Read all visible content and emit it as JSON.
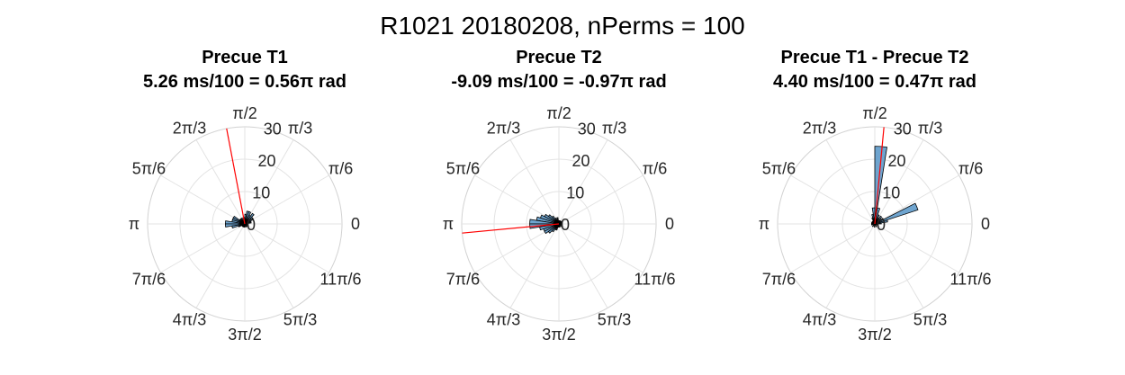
{
  "figure": {
    "title": "R1021 20180208, nPerms = 100"
  },
  "angle_tick_labels": [
    "0",
    "π/6",
    "π/3",
    "π/2",
    "2π/3",
    "5π/6",
    "π",
    "7π/6",
    "4π/3",
    "3π/2",
    "5π/3",
    "11π/6"
  ],
  "chart_data": [
    {
      "type": "polar-histogram",
      "title": "Precue T1",
      "subtitle": "5.26 ms/100 = 0.56π rad",
      "rlim": [
        0,
        30
      ],
      "r_ticks": [
        "0",
        "10",
        "20",
        "30"
      ],
      "grid": true,
      "bar_color": "#6ea4cf",
      "mean_line_color": "#ff0000",
      "mean_angle_pi": 0.56,
      "mean_length": 30,
      "bin_width_pi": 0.05,
      "bins": [
        {
          "angle_pi": 0.025,
          "count": 1
        },
        {
          "angle_pi": 0.075,
          "count": 2
        },
        {
          "angle_pi": 0.125,
          "count": 2
        },
        {
          "angle_pi": 0.175,
          "count": 3
        },
        {
          "angle_pi": 0.225,
          "count": 3
        },
        {
          "angle_pi": 0.275,
          "count": 4
        },
        {
          "angle_pi": 0.325,
          "count": 3
        },
        {
          "angle_pi": 0.375,
          "count": 4
        },
        {
          "angle_pi": 0.425,
          "count": 4
        },
        {
          "angle_pi": 0.475,
          "count": 3
        },
        {
          "angle_pi": 0.525,
          "count": 2
        },
        {
          "angle_pi": 0.575,
          "count": 2
        },
        {
          "angle_pi": 0.625,
          "count": 1
        },
        {
          "angle_pi": 0.675,
          "count": 2
        },
        {
          "angle_pi": 0.725,
          "count": 2
        },
        {
          "angle_pi": 0.775,
          "count": 2
        },
        {
          "angle_pi": 0.825,
          "count": 4
        },
        {
          "angle_pi": 0.875,
          "count": 4
        },
        {
          "angle_pi": 0.925,
          "count": 4
        },
        {
          "angle_pi": 0.975,
          "count": 6
        },
        {
          "angle_pi": 1.025,
          "count": 6
        },
        {
          "angle_pi": 1.075,
          "count": 4
        },
        {
          "angle_pi": 1.125,
          "count": 2
        },
        {
          "angle_pi": 1.175,
          "count": 1
        },
        {
          "angle_pi": 1.225,
          "count": 1
        },
        {
          "angle_pi": 1.275,
          "count": 1
        },
        {
          "angle_pi": 1.325,
          "count": 1
        },
        {
          "angle_pi": 1.375,
          "count": 1
        },
        {
          "angle_pi": 1.475,
          "count": 1
        },
        {
          "angle_pi": 1.625,
          "count": 1
        },
        {
          "angle_pi": 1.725,
          "count": 1
        },
        {
          "angle_pi": 1.875,
          "count": 1
        },
        {
          "angle_pi": 1.975,
          "count": 1
        }
      ]
    },
    {
      "type": "polar-histogram",
      "title": "Precue T2",
      "subtitle": "-9.09 ms/100 = -0.97π rad",
      "rlim": [
        0,
        30
      ],
      "r_ticks": [
        "0",
        "10",
        "20",
        "30"
      ],
      "grid": true,
      "bar_color": "#6ea4cf",
      "mean_line_color": "#ff0000",
      "mean_angle_pi": -0.97,
      "mean_length": 30,
      "bin_width_pi": 0.05,
      "bins": [
        {
          "angle_pi": 0.025,
          "count": 1
        },
        {
          "angle_pi": 0.075,
          "count": 1
        },
        {
          "angle_pi": 0.125,
          "count": 1
        },
        {
          "angle_pi": 0.175,
          "count": 1
        },
        {
          "angle_pi": 0.225,
          "count": 1
        },
        {
          "angle_pi": 0.275,
          "count": 1
        },
        {
          "angle_pi": 0.325,
          "count": 1
        },
        {
          "angle_pi": 0.375,
          "count": 1
        },
        {
          "angle_pi": 0.425,
          "count": 1
        },
        {
          "angle_pi": 0.475,
          "count": 1
        },
        {
          "angle_pi": 0.525,
          "count": 1
        },
        {
          "angle_pi": 0.575,
          "count": 2
        },
        {
          "angle_pi": 0.625,
          "count": 1
        },
        {
          "angle_pi": 0.675,
          "count": 2
        },
        {
          "angle_pi": 0.725,
          "count": 3
        },
        {
          "angle_pi": 0.775,
          "count": 4
        },
        {
          "angle_pi": 0.825,
          "count": 5
        },
        {
          "angle_pi": 0.875,
          "count": 6
        },
        {
          "angle_pi": 0.925,
          "count": 7
        },
        {
          "angle_pi": 0.975,
          "count": 9
        },
        {
          "angle_pi": 1.025,
          "count": 9
        },
        {
          "angle_pi": 1.075,
          "count": 6
        },
        {
          "angle_pi": 1.125,
          "count": 5
        },
        {
          "angle_pi": 1.175,
          "count": 5
        },
        {
          "angle_pi": 1.225,
          "count": 4
        },
        {
          "angle_pi": 1.275,
          "count": 3
        },
        {
          "angle_pi": 1.325,
          "count": 2
        },
        {
          "angle_pi": 1.375,
          "count": 2
        },
        {
          "angle_pi": 1.425,
          "count": 1
        },
        {
          "angle_pi": 1.475,
          "count": 1
        },
        {
          "angle_pi": 1.575,
          "count": 1
        },
        {
          "angle_pi": 1.725,
          "count": 1
        },
        {
          "angle_pi": 1.875,
          "count": 1
        },
        {
          "angle_pi": 1.975,
          "count": 1
        }
      ]
    },
    {
      "type": "polar-histogram",
      "title": "Precue T1 - Precue T2",
      "subtitle": "4.40 ms/100 = 0.47π rad",
      "rlim": [
        0,
        30
      ],
      "r_ticks": [
        "0",
        "10",
        "20",
        "30"
      ],
      "grid": true,
      "bar_color": "#6ea4cf",
      "mean_line_color": "#ff0000",
      "mean_angle_pi": 0.47,
      "mean_length": 30,
      "bin_width_pi": 0.05,
      "bins": [
        {
          "angle_pi": 0.025,
          "count": 2
        },
        {
          "angle_pi": 0.075,
          "count": 4
        },
        {
          "angle_pi": 0.125,
          "count": 14
        },
        {
          "angle_pi": 0.175,
          "count": 3
        },
        {
          "angle_pi": 0.225,
          "count": 2
        },
        {
          "angle_pi": 0.275,
          "count": 3
        },
        {
          "angle_pi": 0.325,
          "count": 2
        },
        {
          "angle_pi": 0.375,
          "count": 3
        },
        {
          "angle_pi": 0.425,
          "count": 5
        },
        {
          "angle_pi": 0.475,
          "count": 24
        },
        {
          "angle_pi": 0.525,
          "count": 5
        },
        {
          "angle_pi": 0.575,
          "count": 3
        },
        {
          "angle_pi": 0.625,
          "count": 2
        },
        {
          "angle_pi": 0.675,
          "count": 1
        },
        {
          "angle_pi": 0.725,
          "count": 1
        },
        {
          "angle_pi": 0.775,
          "count": 1
        },
        {
          "angle_pi": 0.825,
          "count": 1
        },
        {
          "angle_pi": 0.875,
          "count": 1
        },
        {
          "angle_pi": 0.925,
          "count": 1
        },
        {
          "angle_pi": 0.975,
          "count": 1
        },
        {
          "angle_pi": 1.025,
          "count": 1
        },
        {
          "angle_pi": 1.075,
          "count": 1
        },
        {
          "angle_pi": 1.275,
          "count": 1
        },
        {
          "angle_pi": 1.475,
          "count": 1
        },
        {
          "angle_pi": 1.675,
          "count": 1
        },
        {
          "angle_pi": 1.875,
          "count": 1
        },
        {
          "angle_pi": 1.975,
          "count": 1
        }
      ]
    }
  ]
}
